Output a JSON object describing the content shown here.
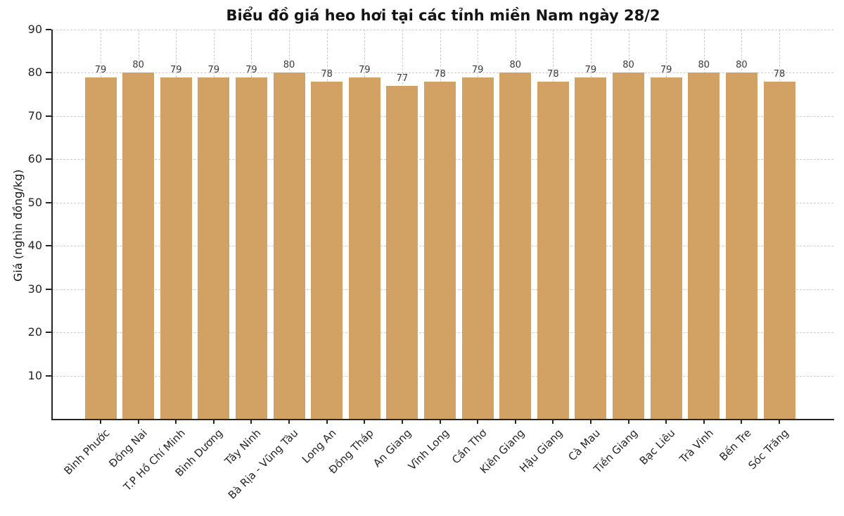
{
  "chart_data": {
    "type": "bar",
    "title": "Biểu đồ giá heo hơi tại các tỉnh miền Nam ngày 28/2",
    "xlabel": "",
    "ylabel": "Giá (nghìn đồng/kg)",
    "categories": [
      "Bình Phước",
      "Đồng Nai",
      "T.P Hồ Chí Minh",
      "Bình Dương",
      "Tây Ninh",
      "Bà Rịa - Vũng Tàu",
      "Long An",
      "Đồng Tháp",
      "An Giang",
      "Vĩnh Long",
      "Cần Thơ",
      "Kiên Giang",
      "Hậu Giang",
      "Cà Mau",
      "Tiền Giang",
      "Bạc Liêu",
      "Trà Vinh",
      "Bến Tre",
      "Sóc Trăng"
    ],
    "values": [
      79,
      80,
      79,
      79,
      79,
      80,
      78,
      79,
      77,
      78,
      79,
      80,
      78,
      79,
      80,
      79,
      80,
      80,
      78
    ],
    "ylim": [
      0,
      90
    ],
    "yticks": [
      10,
      20,
      30,
      40,
      50,
      60,
      70,
      80,
      90
    ],
    "grid": "dashed",
    "legend": "none",
    "bar_color": "#d2a265",
    "axis_color": "#262626",
    "grid_color": "#cccccc",
    "value_label_color": "#3a3a3a"
  }
}
